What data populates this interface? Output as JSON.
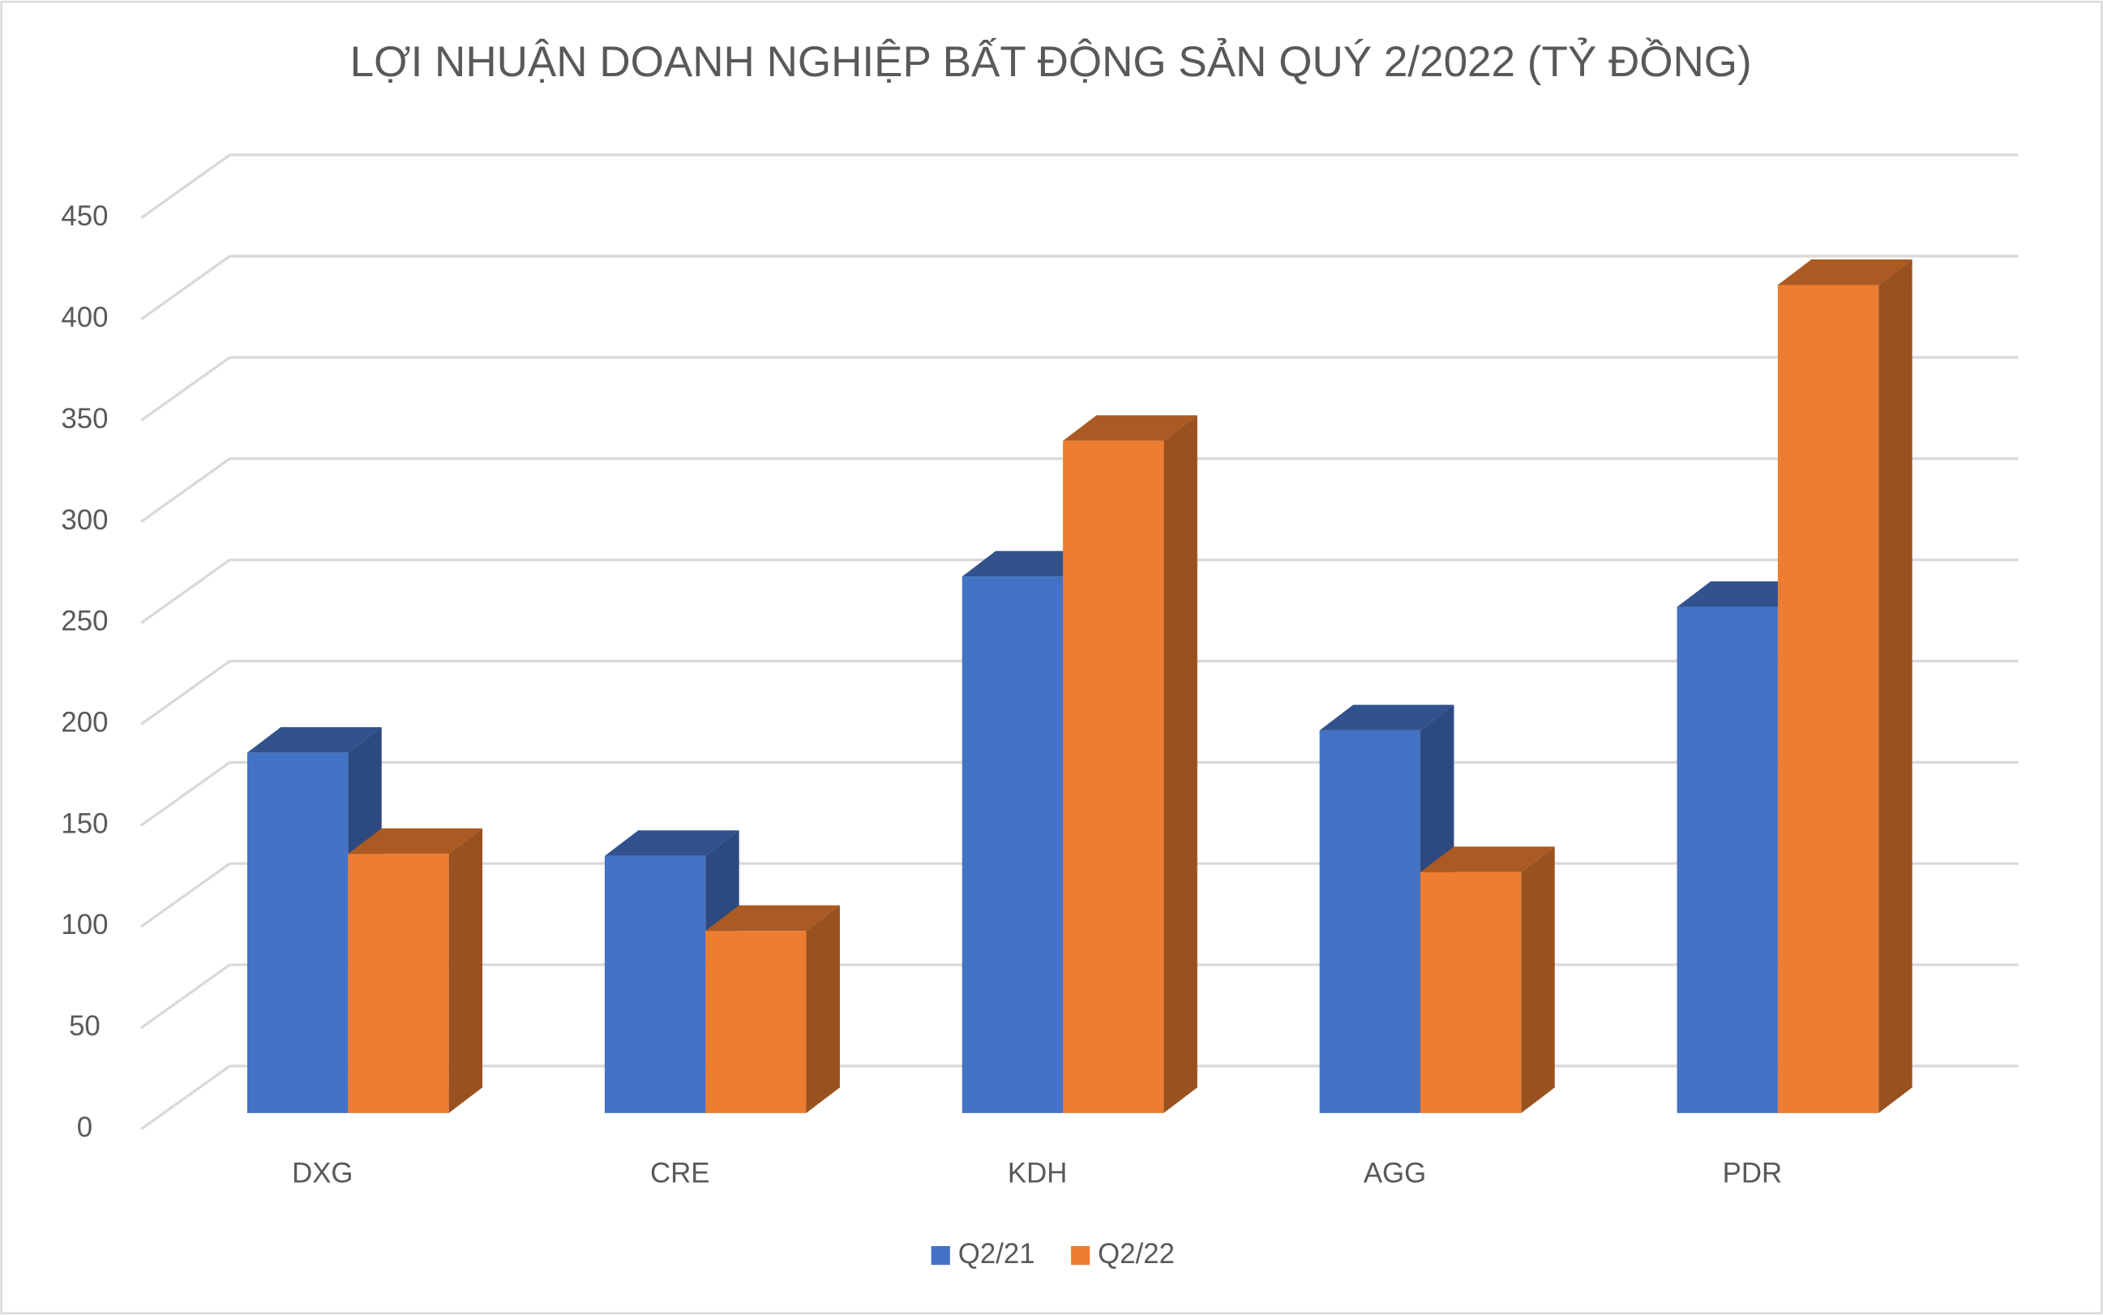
{
  "chart_data": {
    "type": "bar3d",
    "title": "LỢI NHUẬN DOANH NGHIỆP BẤT ĐỘNG SẢN QUÝ 2/2022 (TỶ ĐỒNG)",
    "categories": [
      "DXG",
      "CRE",
      "KDH",
      "AGG",
      "PDR"
    ],
    "series": [
      {
        "name": "Q2/21",
        "color": "#4472c4",
        "values": [
          178,
          127,
          265,
          189,
          250
        ]
      },
      {
        "name": "Q2/22",
        "color": "#ed7d31",
        "values": [
          128,
          90,
          332,
          119,
          409
        ]
      }
    ],
    "ylim": [
      0,
      450
    ],
    "yticks": [
      0,
      50,
      100,
      150,
      200,
      250,
      300,
      350,
      400,
      450
    ],
    "grid": true,
    "legend": "bottom"
  }
}
